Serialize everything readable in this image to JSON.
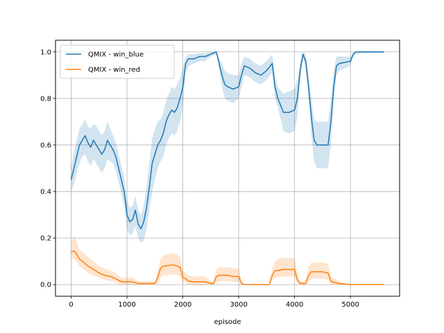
{
  "chart_data": {
    "type": "line",
    "title": "",
    "xlabel": "episode",
    "ylabel": "",
    "xlim": [
      -280,
      5880
    ],
    "ylim": [
      -0.05,
      1.05
    ],
    "xticks": [
      0,
      1000,
      2000,
      3000,
      4000,
      5000
    ],
    "xtick_labels": [
      "0",
      "1000",
      "2000",
      "3000",
      "4000",
      "5000"
    ],
    "yticks": [
      0.0,
      0.2,
      0.4,
      0.6,
      0.8,
      1.0
    ],
    "ytick_labels": [
      "0.0",
      "0.2",
      "0.4",
      "0.6",
      "0.8",
      "1.0"
    ],
    "grid": true,
    "legend_position": "top-left",
    "series": [
      {
        "name": "QMIX - win_blue",
        "color": "#1f77b4",
        "band_color": "#1f77b4",
        "x": [
          0,
          50,
          100,
          150,
          200,
          250,
          300,
          350,
          400,
          450,
          500,
          550,
          600,
          650,
          700,
          750,
          800,
          850,
          900,
          950,
          1000,
          1050,
          1100,
          1150,
          1200,
          1250,
          1300,
          1350,
          1400,
          1450,
          1500,
          1550,
          1600,
          1650,
          1700,
          1750,
          1800,
          1850,
          1900,
          1950,
          2000,
          2050,
          2100,
          2200,
          2300,
          2400,
          2500,
          2600,
          2700,
          2750,
          2800,
          2900,
          3000,
          3050,
          3100,
          3200,
          3300,
          3400,
          3500,
          3600,
          3650,
          3700,
          3800,
          3900,
          4000,
          4050,
          4100,
          4150,
          4200,
          4250,
          4300,
          4350,
          4400,
          4500,
          4600,
          4650,
          4700,
          4750,
          4800,
          4900,
          5000,
          5050,
          5100,
          5200,
          5400,
          5600
        ],
        "y": [
          0.45,
          0.5,
          0.55,
          0.6,
          0.62,
          0.64,
          0.61,
          0.59,
          0.62,
          0.6,
          0.58,
          0.56,
          0.58,
          0.62,
          0.6,
          0.58,
          0.55,
          0.5,
          0.45,
          0.4,
          0.3,
          0.27,
          0.28,
          0.32,
          0.26,
          0.24,
          0.27,
          0.33,
          0.42,
          0.52,
          0.56,
          0.6,
          0.62,
          0.65,
          0.7,
          0.73,
          0.75,
          0.74,
          0.76,
          0.8,
          0.85,
          0.95,
          0.97,
          0.97,
          0.98,
          0.98,
          0.99,
          1.0,
          0.9,
          0.86,
          0.85,
          0.84,
          0.85,
          0.9,
          0.94,
          0.93,
          0.91,
          0.9,
          0.92,
          0.95,
          0.85,
          0.8,
          0.74,
          0.74,
          0.75,
          0.8,
          0.92,
          0.99,
          0.96,
          0.85,
          0.72,
          0.62,
          0.6,
          0.6,
          0.6,
          0.7,
          0.85,
          0.94,
          0.95,
          0.955,
          0.96,
          0.99,
          1.0,
          1.0,
          1.0,
          1.0
        ],
        "lower": [
          0.4,
          0.43,
          0.48,
          0.52,
          0.55,
          0.56,
          0.53,
          0.51,
          0.54,
          0.52,
          0.5,
          0.48,
          0.5,
          0.54,
          0.53,
          0.52,
          0.49,
          0.44,
          0.39,
          0.34,
          0.24,
          0.21,
          0.22,
          0.25,
          0.2,
          0.18,
          0.19,
          0.24,
          0.32,
          0.4,
          0.45,
          0.5,
          0.53,
          0.55,
          0.6,
          0.63,
          0.65,
          0.64,
          0.66,
          0.7,
          0.76,
          0.91,
          0.94,
          0.95,
          0.96,
          0.96,
          0.98,
          0.99,
          0.85,
          0.8,
          0.79,
          0.78,
          0.8,
          0.85,
          0.9,
          0.89,
          0.87,
          0.86,
          0.88,
          0.91,
          0.8,
          0.76,
          0.66,
          0.65,
          0.66,
          0.72,
          0.88,
          0.97,
          0.93,
          0.8,
          0.64,
          0.53,
          0.5,
          0.5,
          0.5,
          0.6,
          0.78,
          0.9,
          0.92,
          0.93,
          0.94,
          0.98,
          0.99,
          0.995,
          0.995,
          0.995
        ],
        "upper": [
          0.5,
          0.57,
          0.62,
          0.67,
          0.69,
          0.71,
          0.68,
          0.67,
          0.69,
          0.68,
          0.66,
          0.64,
          0.66,
          0.7,
          0.67,
          0.64,
          0.61,
          0.56,
          0.51,
          0.46,
          0.36,
          0.33,
          0.34,
          0.38,
          0.32,
          0.3,
          0.34,
          0.42,
          0.52,
          0.63,
          0.67,
          0.7,
          0.71,
          0.74,
          0.79,
          0.82,
          0.85,
          0.84,
          0.86,
          0.89,
          0.93,
          0.98,
          0.99,
          0.99,
          0.995,
          0.995,
          1.0,
          1.0,
          0.95,
          0.92,
          0.91,
          0.9,
          0.9,
          0.95,
          0.98,
          0.97,
          0.95,
          0.94,
          0.96,
          0.99,
          0.9,
          0.85,
          0.82,
          0.83,
          0.84,
          0.88,
          0.96,
          1.0,
          0.99,
          0.9,
          0.8,
          0.71,
          0.7,
          0.7,
          0.7,
          0.8,
          0.92,
          0.98,
          0.98,
          0.98,
          0.98,
          1.0,
          1.0,
          1.0,
          1.0,
          1.0
        ]
      },
      {
        "name": "QMIX - win_red",
        "color": "#ff7f0e",
        "band_color": "#ff7f0e",
        "x": [
          0,
          50,
          100,
          150,
          200,
          300,
          400,
          500,
          600,
          700,
          800,
          900,
          1000,
          1100,
          1200,
          1300,
          1400,
          1500,
          1550,
          1600,
          1650,
          1700,
          1800,
          1900,
          1950,
          2000,
          2050,
          2100,
          2200,
          2300,
          2400,
          2500,
          2550,
          2600,
          2650,
          2800,
          2900,
          3000,
          3050,
          3100,
          3300,
          3500,
          3550,
          3600,
          3650,
          3700,
          3800,
          3900,
          4000,
          4050,
          4100,
          4200,
          4250,
          4300,
          4400,
          4500,
          4600,
          4650,
          4700,
          4800,
          5000,
          5200,
          5400,
          5600
        ],
        "y": [
          0.14,
          0.145,
          0.13,
          0.11,
          0.1,
          0.08,
          0.065,
          0.05,
          0.04,
          0.035,
          0.025,
          0.012,
          0.012,
          0.012,
          0.005,
          0.005,
          0.005,
          0.005,
          0.03,
          0.07,
          0.08,
          0.08,
          0.085,
          0.08,
          0.075,
          0.03,
          0.025,
          0.015,
          0.012,
          0.012,
          0.012,
          0.005,
          0.005,
          0.035,
          0.04,
          0.04,
          0.035,
          0.035,
          0.005,
          0.0,
          0.0,
          0.0,
          0.0,
          0.04,
          0.06,
          0.06,
          0.065,
          0.065,
          0.065,
          0.02,
          0.005,
          0.005,
          0.04,
          0.055,
          0.055,
          0.055,
          0.05,
          0.015,
          0.01,
          0.005,
          0.0,
          0.0,
          0.0,
          0.0
        ],
        "lower": [
          0.11,
          0.11,
          0.1,
          0.08,
          0.07,
          0.05,
          0.04,
          0.03,
          0.02,
          0.015,
          0.008,
          0.0,
          0.0,
          0.0,
          0.0,
          0.0,
          0.0,
          0.0,
          0.005,
          0.03,
          0.04,
          0.04,
          0.045,
          0.04,
          0.035,
          0.01,
          0.008,
          0.0,
          0.0,
          0.0,
          0.0,
          0.0,
          0.0,
          0.01,
          0.015,
          0.015,
          0.012,
          0.012,
          0.0,
          0.0,
          0.0,
          0.0,
          0.0,
          0.015,
          0.03,
          0.03,
          0.035,
          0.035,
          0.035,
          0.005,
          0.0,
          0.0,
          0.015,
          0.025,
          0.025,
          0.025,
          0.02,
          0.0,
          0.0,
          0.0,
          0.0,
          0.0,
          0.0,
          0.0
        ],
        "upper": [
          0.18,
          0.21,
          0.18,
          0.15,
          0.14,
          0.12,
          0.1,
          0.08,
          0.07,
          0.06,
          0.05,
          0.03,
          0.03,
          0.03,
          0.015,
          0.015,
          0.015,
          0.015,
          0.06,
          0.11,
          0.125,
          0.13,
          0.135,
          0.13,
          0.12,
          0.06,
          0.05,
          0.04,
          0.035,
          0.035,
          0.035,
          0.015,
          0.015,
          0.065,
          0.075,
          0.075,
          0.07,
          0.07,
          0.015,
          0.0,
          0.0,
          0.0,
          0.0,
          0.07,
          0.1,
          0.11,
          0.115,
          0.115,
          0.115,
          0.05,
          0.015,
          0.015,
          0.075,
          0.095,
          0.095,
          0.095,
          0.09,
          0.035,
          0.025,
          0.015,
          0.0,
          0.0,
          0.0,
          0.0
        ]
      }
    ]
  }
}
